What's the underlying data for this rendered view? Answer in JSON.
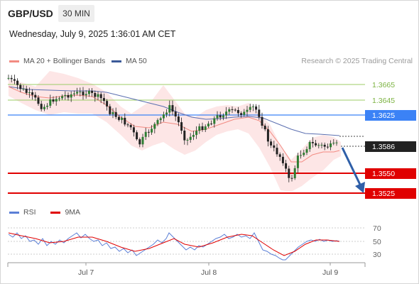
{
  "header": {
    "symbol": "GBP/USD",
    "timeframe": "30 MIN"
  },
  "timestamp": "Wednesday, July 9, 2025 1:36:01 AM CET",
  "legend": {
    "ma20_label": "MA 20 + Bollinger Bands",
    "ma50_label": "MA 50",
    "attribution": "Research © 2025 Trading Central",
    "colors": {
      "ma20": "#f28b82",
      "ma50": "#3c5a99"
    }
  },
  "price_levels": [
    {
      "label": "1.3665",
      "kind": "resistance-minor",
      "color": "#8bc34a"
    },
    {
      "label": "1.3645",
      "kind": "resistance-minor",
      "color": "#8bc34a"
    },
    {
      "label": "1.3625",
      "kind": "pivot",
      "color": "#3b82f6"
    },
    {
      "label": "1.3586",
      "kind": "last-price",
      "color": "#222222"
    },
    {
      "label": "1.3550",
      "kind": "support",
      "color": "#e00000"
    },
    {
      "label": "1.3525",
      "kind": "support",
      "color": "#e00000"
    }
  ],
  "x_axis": {
    "labels": [
      "Jul 7",
      "Jul 8",
      "Jul 9"
    ]
  },
  "rsi_panel": {
    "rsi_label": "RSI",
    "ma_label": "9MA",
    "levels": [
      "70",
      "50",
      "30"
    ],
    "colors": {
      "rsi": "#5b7fd6",
      "ma": "#e00000"
    }
  }
}
